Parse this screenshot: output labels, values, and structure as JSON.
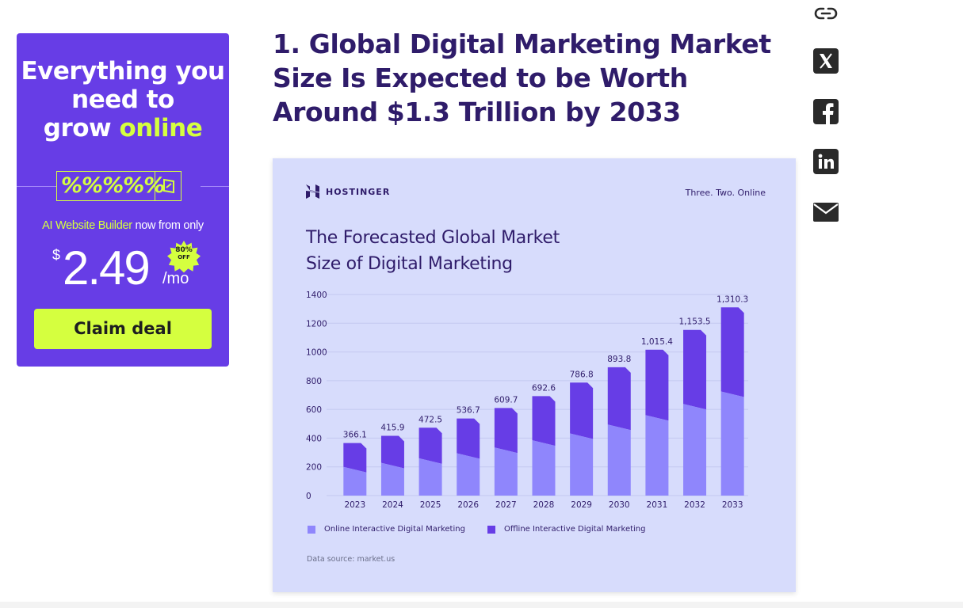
{
  "ad": {
    "headline_line1": "Everything you",
    "headline_line2": "need to",
    "headline_grow": "grow ",
    "headline_online": "online",
    "percent_strip": "%%%%%",
    "sub_highlight": "AI Website Builder",
    "sub_rest": " now from only",
    "currency": "$",
    "price": "2.49",
    "per": "/mo",
    "badge_pct": "80%",
    "badge_off": "OFF",
    "cta": "Claim deal",
    "colors": {
      "background": "#673de6",
      "accent": "#d5ff3f"
    }
  },
  "article": {
    "title": "1. Global Digital Marketing Market Size Is Expected to be Worth Around $1.3 Trillion by 2033"
  },
  "share": {
    "icons": [
      "link-icon",
      "x-icon",
      "facebook-icon",
      "linkedin-icon",
      "email-icon"
    ]
  },
  "infographic": {
    "brand": "HOSTINGER",
    "tagline": "Three. Two. Online",
    "title_line1": "The Forecasted Global Market",
    "title_line2": "Size of Digital Marketing",
    "source": "Data source: market.us",
    "chart_data": {
      "type": "bar",
      "stacked": true,
      "title": "The Forecasted Global Market Size of Digital Marketing",
      "categories": [
        "2023",
        "2024",
        "2025",
        "2026",
        "2027",
        "2028",
        "2029",
        "2030",
        "2031",
        "2032",
        "2033"
      ],
      "totals": [
        366.1,
        415.9,
        472.5,
        536.7,
        609.7,
        692.6,
        786.8,
        893.8,
        1015.4,
        1153.5,
        1310.3
      ],
      "total_labels": [
        "366.1",
        "415.9",
        "472.5",
        "536.7",
        "609.7",
        "692.6",
        "786.8",
        "893.8",
        "1,015.4",
        "1,153.5",
        "1,310.3"
      ],
      "series": [
        {
          "name": "Online Interactive Digital Marketing",
          "color": "#8f86fc",
          "values": [
            200,
            228,
            260,
            295,
            335,
            385,
            433,
            495,
            560,
            638,
            725
          ]
        },
        {
          "name": "Offline Interactive Digital Marketing",
          "color": "#673de6",
          "values": [
            166.1,
            187.9,
            212.5,
            241.7,
            274.7,
            307.6,
            353.8,
            398.8,
            455.4,
            515.5,
            585.3
          ]
        }
      ],
      "yticks": [
        0,
        200,
        400,
        600,
        800,
        1000,
        1200,
        1400
      ],
      "ylim": [
        0,
        1400
      ],
      "grid": true,
      "legend": "bottom-left",
      "xlabel": "",
      "ylabel": ""
    }
  }
}
